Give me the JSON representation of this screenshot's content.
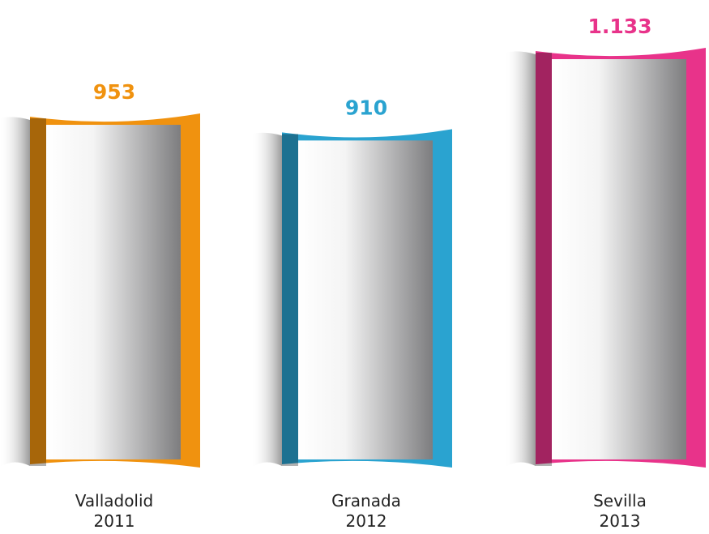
{
  "chart_data": {
    "type": "bar",
    "categories": [
      [
        "Valladolid",
        "2011"
      ],
      [
        "Granada",
        "2012"
      ],
      [
        "Sevilla",
        "2013"
      ]
    ],
    "values": [
      953,
      910,
      1133
    ],
    "value_labels": [
      "953",
      "910",
      "1.133"
    ],
    "colors": [
      "#f0920f",
      "#2aa3d0",
      "#e8338a"
    ]
  }
}
